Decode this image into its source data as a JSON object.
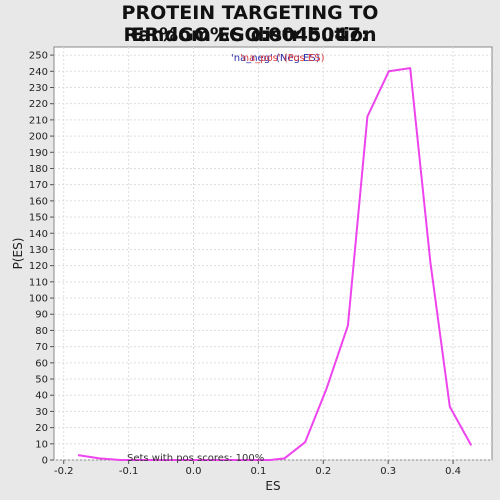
{
  "chart_data": {
    "type": "line",
    "title_line1": "PROTEIN TARGETING TO ER%GO%GO:0045047:",
    "title_line2": "Random ES distribution",
    "xlabel": "ES",
    "ylabel": "P(ES)",
    "xlim": [
      -0.215,
      0.46
    ],
    "ylim": [
      0,
      255
    ],
    "x_ticks": [
      -0.2,
      -0.1,
      0.0,
      0.1,
      0.2,
      0.3,
      0.4
    ],
    "x_tick_labels": [
      "-0.2",
      "-0.1",
      "0.0",
      "0.1",
      "0.2",
      "0.3",
      "0.4"
    ],
    "y_ticks": [
      0,
      10,
      20,
      30,
      40,
      50,
      60,
      70,
      80,
      90,
      100,
      110,
      120,
      130,
      140,
      150,
      160,
      170,
      180,
      190,
      200,
      210,
      220,
      230,
      240,
      250
    ],
    "grid": true,
    "legend": {
      "placement": "top-center",
      "entry_a": "'na_neg' (Neg ES)",
      "entry_b": "'na_pos' (Pos ES)"
    },
    "annotation": "Sets with pos scores: 100%",
    "series": [
      {
        "color": "#ee44ee",
        "x": [
          -0.178,
          -0.145,
          -0.113,
          -0.08,
          -0.047,
          -0.014,
          0.019,
          0.052,
          0.085,
          0.118,
          0.14,
          0.172,
          0.205,
          0.238,
          0.268,
          0.301,
          0.334,
          0.365,
          0.395,
          0.428
        ],
        "y": [
          3,
          1,
          0,
          0,
          0,
          0,
          0,
          0,
          0,
          0,
          1,
          11,
          44,
          83,
          212,
          240,
          242,
          122,
          33,
          9
        ]
      }
    ]
  }
}
